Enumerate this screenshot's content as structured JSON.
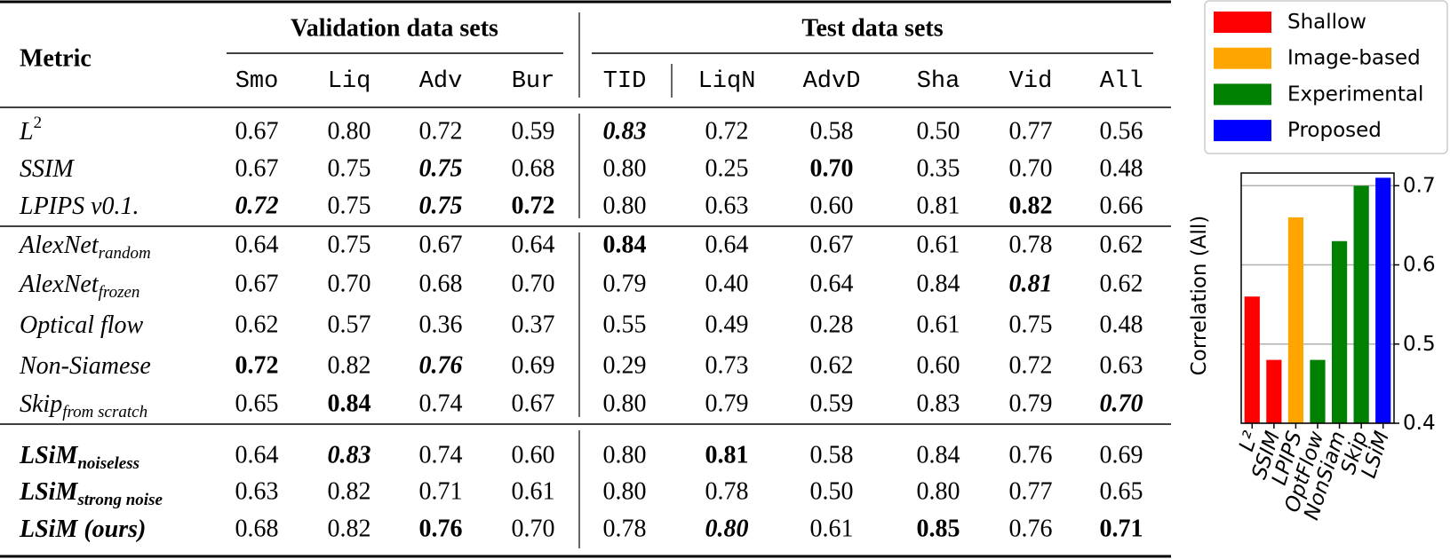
{
  "table": {
    "header": {
      "metric": "Metric",
      "groups": [
        {
          "label": "Validation data sets",
          "columns": [
            "Smo",
            "Liq",
            "Adv",
            "Bur"
          ]
        },
        {
          "label": "Test data sets",
          "columns": [
            "TID",
            "LiqN",
            "AdvD",
            "Sha",
            "Vid",
            "All"
          ]
        }
      ]
    },
    "emphasis_color": "#1e6b1e",
    "row_groups": [
      [
        {
          "metric": {
            "text": "L",
            "sup": "2"
          },
          "values": [
            "0.67",
            "0.80",
            "0.72",
            "0.59",
            "0.83",
            "0.72",
            "0.58",
            "0.50",
            "0.77",
            "0.56"
          ],
          "bold": [],
          "bold_italic": [
            4
          ]
        },
        {
          "metric": {
            "text": "SSIM"
          },
          "values": [
            "0.67",
            "0.75",
            "0.75",
            "0.68",
            "0.80",
            "0.25",
            "0.70",
            "0.35",
            "0.70",
            "0.48"
          ],
          "bold": [
            6
          ],
          "bold_italic": [
            2
          ]
        },
        {
          "metric": {
            "text": "LPIPS v0.1."
          },
          "values": [
            "0.72",
            "0.75",
            "0.75",
            "0.72",
            "0.80",
            "0.63",
            "0.60",
            "0.81",
            "0.82",
            "0.66"
          ],
          "bold": [
            3,
            8
          ],
          "bold_italic": [
            0,
            2
          ]
        }
      ],
      [
        {
          "metric": {
            "text": "AlexNet",
            "sub": "random"
          },
          "values": [
            "0.64",
            "0.75",
            "0.67",
            "0.64",
            "0.84",
            "0.64",
            "0.67",
            "0.61",
            "0.78",
            "0.62"
          ],
          "bold": [
            4
          ],
          "bold_italic": []
        },
        {
          "metric": {
            "text": "AlexNet",
            "sub": "frozen"
          },
          "values": [
            "0.67",
            "0.70",
            "0.68",
            "0.70",
            "0.79",
            "0.40",
            "0.64",
            "0.84",
            "0.81",
            "0.62"
          ],
          "bold": [],
          "bold_italic": [
            8
          ]
        },
        {
          "metric": {
            "text": "Optical flow"
          },
          "values": [
            "0.62",
            "0.57",
            "0.36",
            "0.37",
            "0.55",
            "0.49",
            "0.28",
            "0.61",
            "0.75",
            "0.48"
          ],
          "bold": [],
          "bold_italic": []
        },
        {
          "metric": {
            "text": "Non-Siamese"
          },
          "values": [
            "0.72",
            "0.82",
            "0.76",
            "0.69",
            "0.29",
            "0.73",
            "0.62",
            "0.60",
            "0.72",
            "0.63"
          ],
          "bold": [
            0
          ],
          "bold_italic": [
            2
          ]
        },
        {
          "metric": {
            "text": "Skip",
            "sub": "from scratch"
          },
          "values": [
            "0.65",
            "0.84",
            "0.74",
            "0.67",
            "0.80",
            "0.79",
            "0.59",
            "0.83",
            "0.79",
            "0.70"
          ],
          "bold": [
            1
          ],
          "bold_italic": [
            9
          ]
        }
      ],
      [
        {
          "metric": {
            "text": "LSiM",
            "sub": "noiseless"
          },
          "bold_name": true,
          "values": [
            "0.64",
            "0.83",
            "0.74",
            "0.60",
            "0.80",
            "0.81",
            "0.58",
            "0.84",
            "0.76",
            "0.69"
          ],
          "bold": [
            5
          ],
          "bold_italic": [
            1
          ]
        },
        {
          "metric": {
            "text": "LSiM",
            "sub": "strong noise"
          },
          "bold_name": true,
          "values": [
            "0.63",
            "0.82",
            "0.71",
            "0.61",
            "0.80",
            "0.78",
            "0.50",
            "0.80",
            "0.77",
            "0.65"
          ],
          "bold": [],
          "bold_italic": []
        },
        {
          "metric": {
            "text": "LSiM (ours)"
          },
          "bold_name": true,
          "values": [
            "0.68",
            "0.82",
            "0.76",
            "0.70",
            "0.78",
            "0.80",
            "0.61",
            "0.85",
            "0.76",
            "0.71"
          ],
          "bold": [
            2,
            7,
            9
          ],
          "bold_italic": [
            5
          ]
        }
      ]
    ]
  },
  "chart_data": {
    "type": "bar",
    "y_label": "Correlation (All)",
    "categories": [
      "L²",
      "SSIM",
      "LPIPS",
      "OptFlow",
      "NonSiam",
      "Skip",
      "LSiM"
    ],
    "series": [
      {
        "name": "Shallow",
        "color": "#ff0000",
        "values": [
          0.56,
          0.48,
          null,
          null,
          null,
          null,
          null
        ]
      },
      {
        "name": "Image-based",
        "color": "#ffa500",
        "values": [
          null,
          null,
          0.66,
          null,
          null,
          null,
          null
        ]
      },
      {
        "name": "Experimental",
        "color": "#008000",
        "values": [
          null,
          null,
          null,
          0.48,
          0.63,
          0.7,
          null
        ]
      },
      {
        "name": "Proposed",
        "color": "#0000ff",
        "values": [
          null,
          null,
          null,
          null,
          null,
          null,
          0.71
        ]
      }
    ],
    "ylim": [
      0.4,
      0.716
    ],
    "yticks": [
      0.4,
      0.5,
      0.6,
      0.7
    ],
    "grid": true,
    "legend": "upper right"
  }
}
